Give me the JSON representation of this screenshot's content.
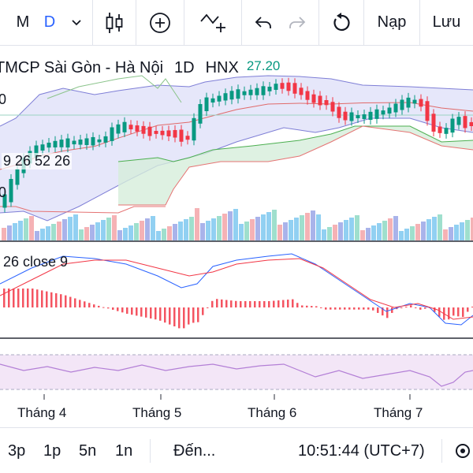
{
  "toolbar": {
    "interval_m": "M",
    "interval_d": "D",
    "load_label": "Nạp",
    "save_label": "Lưu",
    "accent": "#2962ff"
  },
  "legend": {
    "name": "TMCP Sài Gòn - Hà Nội",
    "interval": "1D",
    "exchange": "HNX",
    "price": "27.20",
    "price_color": "#089981"
  },
  "indicators": {
    "ichimoku_params": "9 26 52 26",
    "macd_params": "26 close 9",
    "left_fragment_top": "0",
    "left_fragment_mid": "0"
  },
  "time_axis": {
    "labels": [
      "Tháng 4",
      "Tháng 5",
      "Tháng 6",
      "Tháng 7"
    ]
  },
  "bottom": {
    "ranges": [
      "3p",
      "1p",
      "5n",
      "1n"
    ],
    "goto": "Đến...",
    "clock": "10:51:44 (UTC+7)"
  },
  "colors": {
    "up": "#089981",
    "down": "#f23645",
    "bb_fill": "#d1d4f5",
    "cloud_green": "#d6eedb",
    "cloud_red": "#f8d8d8",
    "macd_line": "#2962ff",
    "signal_line": "#f23645",
    "rsi_band": "#f0e0f5",
    "rsi_line": "#b37fd6"
  }
}
